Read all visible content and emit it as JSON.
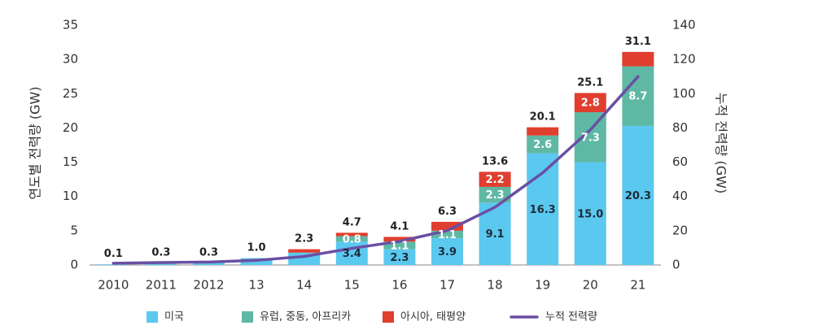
{
  "chart_data": {
    "type": "bar",
    "stacked": true,
    "categories": [
      "2010",
      "2011",
      "2012",
      "13",
      "14",
      "15",
      "16",
      "17",
      "18",
      "19",
      "20",
      "21"
    ],
    "series": [
      {
        "name": "미국",
        "color": "#5bc8ef",
        "values": [
          0.1,
          0.3,
          0.3,
          1.0,
          1.8,
          3.4,
          2.3,
          3.9,
          9.1,
          16.3,
          15.0,
          20.3
        ],
        "labels": [
          "",
          "",
          "",
          "",
          "",
          "3.4",
          "2.3",
          "3.9",
          "9.1",
          "16.3",
          "15.0",
          "20.3"
        ]
      },
      {
        "name": "유럽, 중동, 아프리카",
        "color": "#5fb8a4",
        "values": [
          0,
          0,
          0,
          0,
          0,
          0.8,
          1.1,
          1.1,
          2.3,
          2.6,
          7.3,
          8.7
        ],
        "labels": [
          "",
          "",
          "",
          "",
          "",
          "0.8",
          "1.1",
          "1.1",
          "2.3",
          "2.6",
          "7.3",
          "8.7"
        ]
      },
      {
        "name": "아시아, 태평양",
        "color": "#e03e2e",
        "values": [
          0,
          0,
          0,
          0,
          0.5,
          0.5,
          0.7,
          1.3,
          2.2,
          1.2,
          2.8,
          2.1
        ],
        "labels": [
          "",
          "",
          "",
          "",
          "",
          "",
          "",
          "",
          "2.2",
          "",
          "2.8",
          ""
        ]
      }
    ],
    "totals": [
      "0.1",
      "0.3",
      "0.3",
      "1.0",
      "2.3",
      "4.7",
      "4.1",
      "6.3",
      "13.6",
      "20.1",
      "25.1",
      "31.1"
    ],
    "line": {
      "name": "누적 전력량",
      "color": "#6a4fa3",
      "axis": "right",
      "values": [
        1,
        1.4,
        1.7,
        2.7,
        5,
        9.7,
        13.8,
        20.1,
        33.7,
        53.8,
        78.9,
        110
      ]
    },
    "ylabel": "연도별 전력량 (GW)",
    "y2label": "누적 전력량 (GW)",
    "ylim": [
      0,
      35
    ],
    "y2lim": [
      0,
      140
    ],
    "yticks": [
      "0",
      "5",
      "10",
      "15",
      "20",
      "25",
      "30",
      "35"
    ],
    "y2ticks": [
      "0",
      "20",
      "40",
      "60",
      "80",
      "100",
      "120",
      "140"
    ],
    "legend_position": "bottom",
    "grid": false
  }
}
